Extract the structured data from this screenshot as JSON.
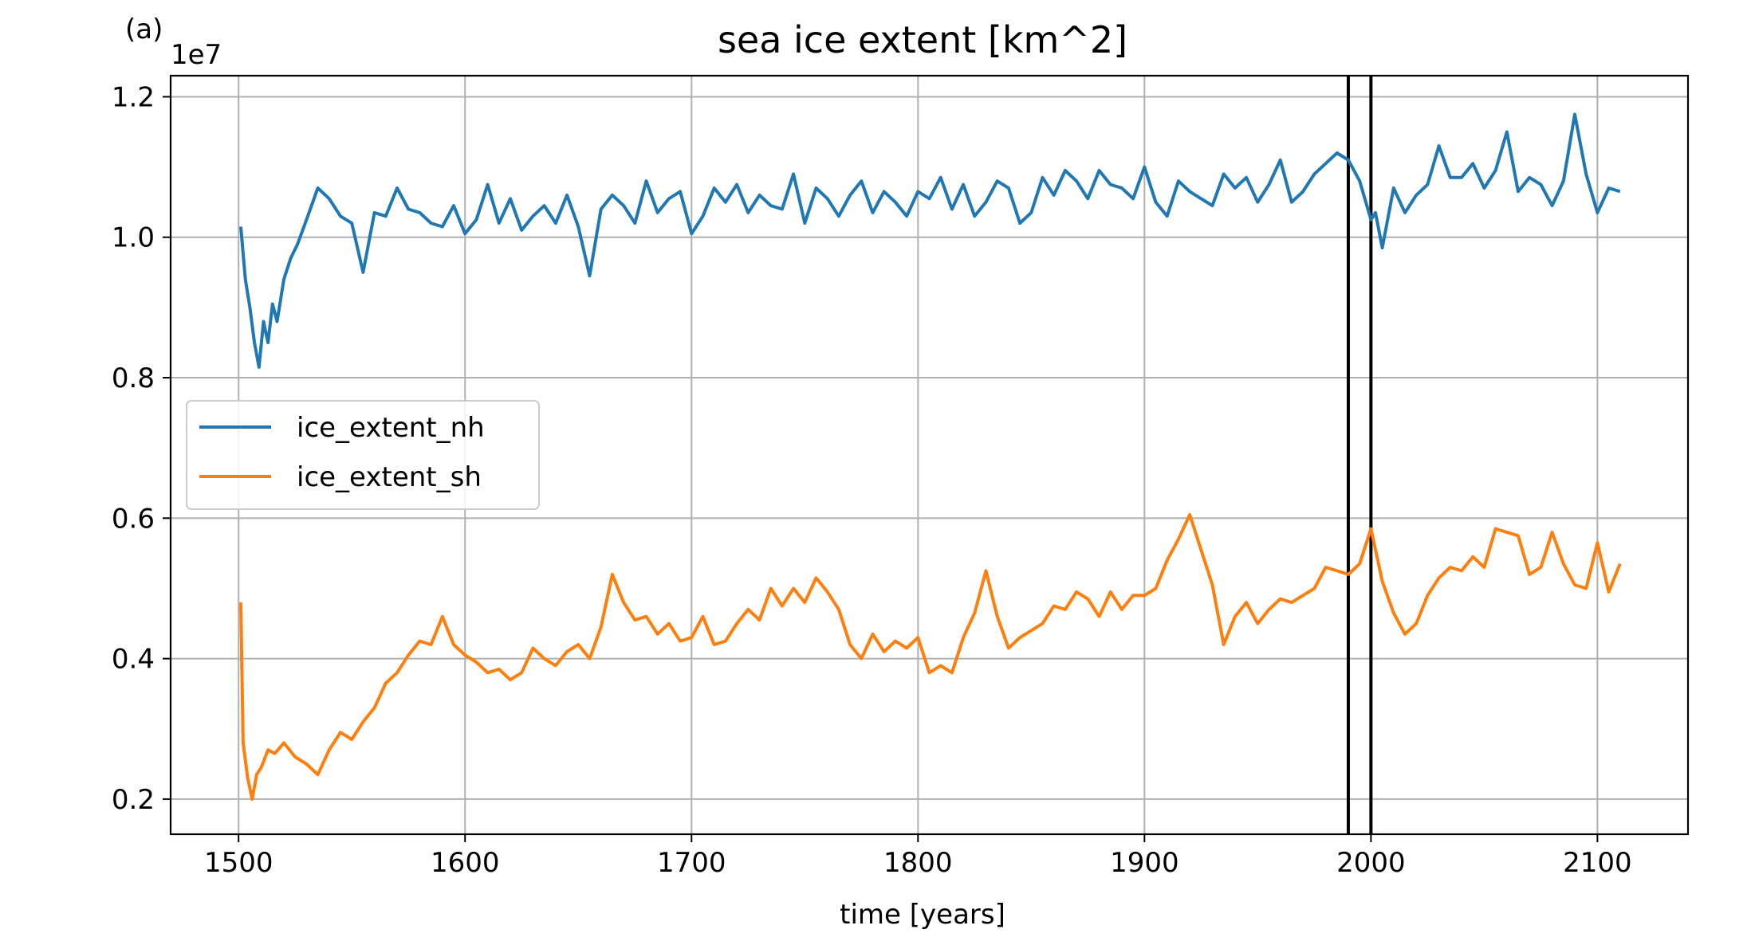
{
  "panel_label": "(a)",
  "chart_data": {
    "type": "line",
    "title": "sea ice extent [km^2]",
    "xlabel": "time [years]",
    "ylabel": "",
    "y_offset_label": "1e7",
    "xlim": [
      1470,
      2140
    ],
    "ylim": [
      1500000,
      12300000
    ],
    "xticks": [
      1500,
      1600,
      1700,
      1800,
      1900,
      2000,
      2100
    ],
    "xtick_labels": [
      "1500",
      "1600",
      "1700",
      "1800",
      "1900",
      "2000",
      "2100"
    ],
    "yticks": [
      2000000,
      4000000,
      6000000,
      8000000,
      10000000,
      12000000
    ],
    "ytick_labels": [
      "0.2",
      "0.4",
      "0.6",
      "0.8",
      "1.0",
      "1.2"
    ],
    "grid": true,
    "legend_position": "center-left",
    "vertical_lines": [
      1990,
      2000
    ],
    "series": [
      {
        "name": "ice_extent_nh",
        "color": "#1f77b4",
        "x": [
          1501,
          1503,
          1505,
          1507,
          1509,
          1511,
          1513,
          1515,
          1517,
          1520,
          1523,
          1526,
          1530,
          1535,
          1540,
          1545,
          1550,
          1555,
          1560,
          1565,
          1570,
          1575,
          1580,
          1585,
          1590,
          1595,
          1600,
          1605,
          1610,
          1615,
          1620,
          1625,
          1630,
          1635,
          1640,
          1645,
          1650,
          1655,
          1660,
          1665,
          1670,
          1675,
          1680,
          1685,
          1690,
          1695,
          1700,
          1705,
          1710,
          1715,
          1720,
          1725,
          1730,
          1735,
          1740,
          1745,
          1750,
          1755,
          1760,
          1765,
          1770,
          1775,
          1780,
          1785,
          1790,
          1795,
          1800,
          1805,
          1810,
          1815,
          1820,
          1825,
          1830,
          1835,
          1840,
          1845,
          1850,
          1855,
          1860,
          1865,
          1870,
          1875,
          1880,
          1885,
          1890,
          1895,
          1900,
          1905,
          1910,
          1915,
          1920,
          1925,
          1930,
          1935,
          1940,
          1945,
          1950,
          1955,
          1960,
          1965,
          1970,
          1975,
          1980,
          1985,
          1990,
          1995,
          2000,
          2002,
          2005,
          2010,
          2015,
          2020,
          2025,
          2030,
          2035,
          2040,
          2045,
          2050,
          2055,
          2060,
          2065,
          2070,
          2075,
          2080,
          2085,
          2090,
          2095,
          2100,
          2105,
          2110
        ],
        "y": [
          10150000,
          9400000,
          9000000,
          8500000,
          8150000,
          8800000,
          8500000,
          9050000,
          8800000,
          9400000,
          9700000,
          9900000,
          10250000,
          10700000,
          10550000,
          10300000,
          10200000,
          9500000,
          10350000,
          10300000,
          10700000,
          10400000,
          10350000,
          10200000,
          10150000,
          10450000,
          10050000,
          10250000,
          10750000,
          10200000,
          10550000,
          10100000,
          10300000,
          10450000,
          10200000,
          10600000,
          10150000,
          9450000,
          10400000,
          10600000,
          10450000,
          10200000,
          10800000,
          10350000,
          10550000,
          10650000,
          10050000,
          10300000,
          10700000,
          10500000,
          10750000,
          10350000,
          10600000,
          10450000,
          10400000,
          10900000,
          10200000,
          10700000,
          10550000,
          10300000,
          10600000,
          10800000,
          10350000,
          10650000,
          10500000,
          10300000,
          10650000,
          10550000,
          10850000,
          10400000,
          10750000,
          10300000,
          10500000,
          10800000,
          10700000,
          10200000,
          10350000,
          10850000,
          10600000,
          10950000,
          10800000,
          10550000,
          10950000,
          10750000,
          10700000,
          10550000,
          11000000,
          10500000,
          10300000,
          10800000,
          10650000,
          10550000,
          10450000,
          10900000,
          10700000,
          10850000,
          10500000,
          10750000,
          11100000,
          10500000,
          10650000,
          10900000,
          11050000,
          11200000,
          11100000,
          10800000,
          10250000,
          10350000,
          9850000,
          10700000,
          10350000,
          10600000,
          10750000,
          11300000,
          10850000,
          10850000,
          11050000,
          10700000,
          10950000,
          11500000,
          10650000,
          10850000,
          10750000,
          10450000,
          10800000,
          11750000,
          10900000,
          10350000,
          10700000,
          10650000
        ],
        "values_note": ""
      },
      {
        "name": "ice_extent_sh",
        "color": "#ff7f0e",
        "x": [
          1501,
          1502,
          1504,
          1506,
          1508,
          1510,
          1513,
          1516,
          1520,
          1525,
          1530,
          1535,
          1540,
          1545,
          1550,
          1555,
          1560,
          1565,
          1570,
          1575,
          1580,
          1585,
          1590,
          1595,
          1600,
          1605,
          1610,
          1615,
          1620,
          1625,
          1630,
          1635,
          1640,
          1645,
          1650,
          1655,
          1660,
          1665,
          1670,
          1675,
          1680,
          1685,
          1690,
          1695,
          1700,
          1705,
          1710,
          1715,
          1720,
          1725,
          1730,
          1735,
          1740,
          1745,
          1750,
          1755,
          1760,
          1765,
          1770,
          1775,
          1780,
          1785,
          1790,
          1795,
          1800,
          1805,
          1810,
          1815,
          1820,
          1825,
          1830,
          1835,
          1840,
          1845,
          1850,
          1855,
          1860,
          1865,
          1870,
          1875,
          1880,
          1885,
          1890,
          1895,
          1900,
          1905,
          1910,
          1915,
          1920,
          1925,
          1930,
          1935,
          1940,
          1945,
          1950,
          1955,
          1960,
          1965,
          1970,
          1975,
          1980,
          1985,
          1990,
          1995,
          2000,
          2005,
          2010,
          2015,
          2020,
          2025,
          2030,
          2035,
          2040,
          2045,
          2050,
          2055,
          2060,
          2065,
          2070,
          2075,
          2080,
          2085,
          2090,
          2095,
          2100,
          2105,
          2110
        ],
        "y": [
          4800000,
          2800000,
          2300000,
          2000000,
          2350000,
          2450000,
          2700000,
          2650000,
          2800000,
          2600000,
          2500000,
          2350000,
          2700000,
          2950000,
          2850000,
          3100000,
          3300000,
          3650000,
          3800000,
          4050000,
          4250000,
          4200000,
          4600000,
          4200000,
          4050000,
          3950000,
          3800000,
          3850000,
          3700000,
          3800000,
          4150000,
          4000000,
          3900000,
          4100000,
          4200000,
          4000000,
          4450000,
          5200000,
          4800000,
          4550000,
          4600000,
          4350000,
          4500000,
          4250000,
          4300000,
          4600000,
          4200000,
          4250000,
          4500000,
          4700000,
          4550000,
          5000000,
          4750000,
          5000000,
          4800000,
          5150000,
          4950000,
          4700000,
          4200000,
          4000000,
          4350000,
          4100000,
          4250000,
          4150000,
          4300000,
          3800000,
          3900000,
          3800000,
          4300000,
          4650000,
          5250000,
          4600000,
          4150000,
          4300000,
          4400000,
          4500000,
          4750000,
          4700000,
          4950000,
          4850000,
          4600000,
          4950000,
          4700000,
          4900000,
          4900000,
          5000000,
          5400000,
          5700000,
          6050000,
          5550000,
          5050000,
          4200000,
          4600000,
          4800000,
          4500000,
          4700000,
          4850000,
          4800000,
          4900000,
          5000000,
          5300000,
          5250000,
          5200000,
          5350000,
          5850000,
          5100000,
          4650000,
          4350000,
          4500000,
          4900000,
          5150000,
          5300000,
          5250000,
          5450000,
          5300000,
          5850000,
          5800000,
          5750000,
          5200000,
          5300000,
          5800000,
          5350000,
          5050000,
          5000000,
          5650000,
          4950000,
          5350000
        ]
      }
    ]
  }
}
